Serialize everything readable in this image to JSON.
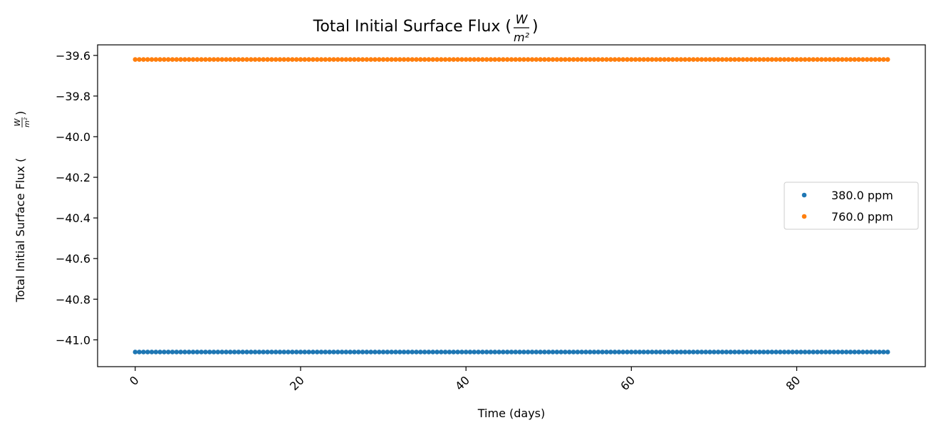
{
  "chart_data": {
    "type": "scatter",
    "title": "Total Initial Surface Flux (",
    "title_unit_num": "W",
    "title_unit_den": "m²",
    "title_suffix": ")",
    "xlabel": "Time (days)",
    "ylabel": "Total Initial Surface Flux (",
    "ylabel_unit_num": "W",
    "ylabel_unit_den": "m²",
    "ylabel_suffix": ")",
    "xlim": [
      -4.55,
      95.55
    ],
    "ylim": [
      -41.132,
      -39.548
    ],
    "x_ticks": [
      0,
      20,
      40,
      60,
      80
    ],
    "x_tick_labels": [
      "0",
      "20",
      "40",
      "60",
      "80"
    ],
    "x_tick_rotation": 45,
    "y_ticks": [
      -39.6,
      -39.8,
      -40.0,
      -40.2,
      -40.4,
      -40.6,
      -40.8,
      -41.0
    ],
    "y_tick_labels": [
      "−39.6",
      "−39.8",
      "−40.0",
      "−40.2",
      "−40.4",
      "−40.6",
      "−40.8",
      "−41.0"
    ],
    "x_start": 0,
    "x_end": 91,
    "x_step": 0.5,
    "grid": false,
    "legend_position": "center-right",
    "series": [
      {
        "name": "380.0 ppm",
        "value": -41.06,
        "color": "#1f77b4"
      },
      {
        "name": "760.0 ppm",
        "value": -39.62,
        "color": "#ff7f0e"
      }
    ]
  }
}
